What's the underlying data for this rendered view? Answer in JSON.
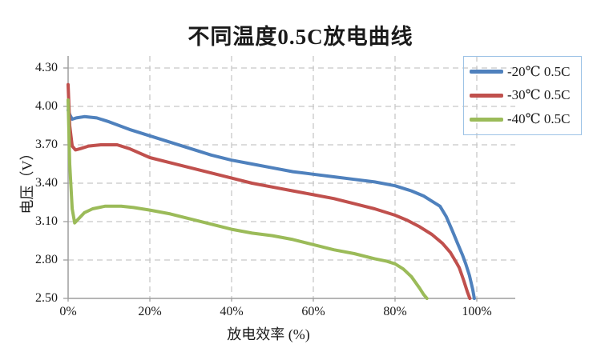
{
  "chart_data": {
    "type": "line",
    "title": "不同温度0.5C放电曲线",
    "xlabel": "放电效率 (%)",
    "ylabel": "电压（V）",
    "xlim": [
      0,
      109.4
    ],
    "ylim": [
      2.5,
      4.39
    ],
    "grid": "dashed",
    "legend_position": "top-right",
    "x_ticks": [
      0,
      20,
      40,
      60,
      80,
      100
    ],
    "x_tick_labels": [
      "0%",
      "20%",
      "40%",
      "60%",
      "80%",
      "100%"
    ],
    "y_ticks": [
      4.3,
      4.0,
      3.7,
      3.4,
      3.1,
      2.8,
      2.5
    ],
    "y_tick_labels": [
      "4.30",
      "4.00",
      "3.70",
      "3.40",
      "3.10",
      "2.80",
      "2.50"
    ],
    "colors": {
      "axis": "#9E9E9E",
      "gridline": "#C8C8C8",
      "text": "#1a1a1a",
      "legend_border": "#9DC3E6"
    },
    "series": [
      {
        "name": "-20℃ 0.5C",
        "color": "#4F81BD",
        "points": [
          [
            0,
            3.97
          ],
          [
            0.5,
            3.93
          ],
          [
            1,
            3.9
          ],
          [
            2,
            3.91
          ],
          [
            4,
            3.92
          ],
          [
            7,
            3.91
          ],
          [
            10,
            3.88
          ],
          [
            15,
            3.82
          ],
          [
            20,
            3.77
          ],
          [
            25,
            3.72
          ],
          [
            30,
            3.67
          ],
          [
            35,
            3.62
          ],
          [
            40,
            3.58
          ],
          [
            45,
            3.55
          ],
          [
            50,
            3.52
          ],
          [
            55,
            3.49
          ],
          [
            60,
            3.47
          ],
          [
            65,
            3.45
          ],
          [
            70,
            3.43
          ],
          [
            75,
            3.41
          ],
          [
            80,
            3.38
          ],
          [
            84,
            3.34
          ],
          [
            87,
            3.3
          ],
          [
            89,
            3.26
          ],
          [
            91,
            3.22
          ],
          [
            92.5,
            3.14
          ],
          [
            94,
            3.03
          ],
          [
            95.3,
            2.93
          ],
          [
            96.5,
            2.84
          ],
          [
            97.3,
            2.77
          ],
          [
            98.2,
            2.68
          ],
          [
            99,
            2.57
          ],
          [
            99.4,
            2.5
          ]
        ]
      },
      {
        "name": "-30℃ 0.5C",
        "color": "#C0504D",
        "points": [
          [
            0,
            4.17
          ],
          [
            0.4,
            3.85
          ],
          [
            1,
            3.69
          ],
          [
            1.8,
            3.66
          ],
          [
            3,
            3.67
          ],
          [
            5,
            3.69
          ],
          [
            8,
            3.7
          ],
          [
            12,
            3.7
          ],
          [
            15,
            3.67
          ],
          [
            20,
            3.6
          ],
          [
            25,
            3.56
          ],
          [
            30,
            3.52
          ],
          [
            35,
            3.48
          ],
          [
            40,
            3.44
          ],
          [
            45,
            3.4
          ],
          [
            50,
            3.37
          ],
          [
            55,
            3.34
          ],
          [
            60,
            3.31
          ],
          [
            65,
            3.28
          ],
          [
            70,
            3.24
          ],
          [
            75,
            3.2
          ],
          [
            80,
            3.15
          ],
          [
            83,
            3.11
          ],
          [
            86,
            3.06
          ],
          [
            89,
            3.0
          ],
          [
            91.6,
            2.93
          ],
          [
            93.5,
            2.86
          ],
          [
            95,
            2.78
          ],
          [
            95.7,
            2.74
          ],
          [
            96.8,
            2.64
          ],
          [
            97.7,
            2.55
          ],
          [
            98.3,
            2.5
          ]
        ]
      },
      {
        "name": "-40℃ 0.5C",
        "color": "#9BBB59",
        "points": [
          [
            0,
            4.05
          ],
          [
            0.4,
            3.55
          ],
          [
            1,
            3.2
          ],
          [
            1.6,
            3.09
          ],
          [
            2.5,
            3.12
          ],
          [
            4,
            3.17
          ],
          [
            6,
            3.2
          ],
          [
            9,
            3.22
          ],
          [
            13,
            3.22
          ],
          [
            16,
            3.21
          ],
          [
            20,
            3.19
          ],
          [
            25,
            3.16
          ],
          [
            30,
            3.12
          ],
          [
            35,
            3.08
          ],
          [
            40,
            3.04
          ],
          [
            45,
            3.01
          ],
          [
            50,
            2.99
          ],
          [
            55,
            2.96
          ],
          [
            60,
            2.92
          ],
          [
            65,
            2.88
          ],
          [
            70,
            2.85
          ],
          [
            75,
            2.81
          ],
          [
            78,
            2.79
          ],
          [
            80,
            2.77
          ],
          [
            82,
            2.73
          ],
          [
            84,
            2.67
          ],
          [
            86,
            2.58
          ],
          [
            87,
            2.53
          ],
          [
            87.8,
            2.5
          ]
        ]
      }
    ]
  }
}
